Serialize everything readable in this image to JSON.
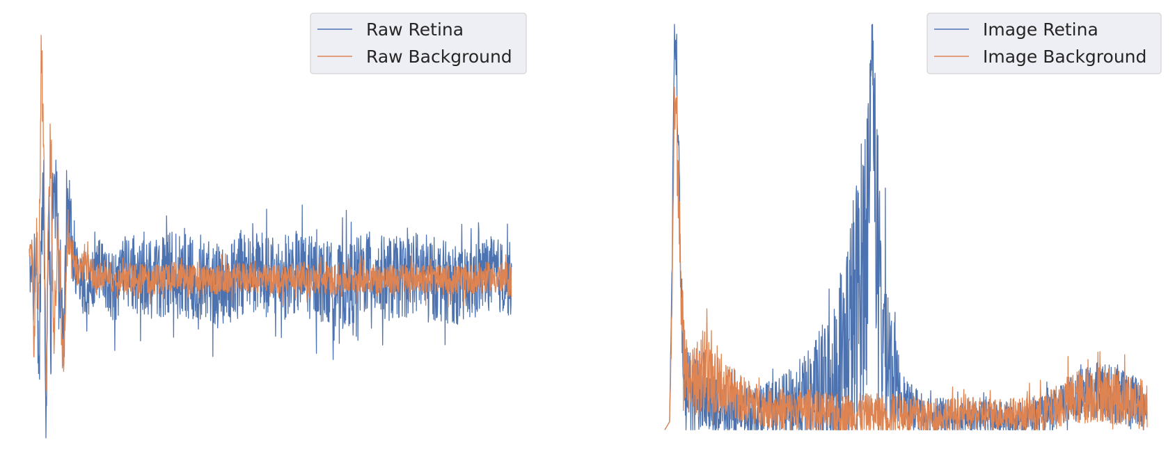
{
  "chart_data": [
    {
      "type": "line",
      "panel": "left",
      "title": "",
      "xlabel": "",
      "ylabel": "",
      "axes_visible": false,
      "grid": false,
      "legend": {
        "placement": "top-right"
      },
      "series": [
        {
          "name": "Raw Retina",
          "color": "#4c72b0",
          "anchors_x": [
            0,
            0.5,
            1.0,
            1.5,
            2.0,
            2.5,
            3.0,
            3.5,
            4.0,
            4.5,
            5.0,
            6.0,
            7.0,
            8.0,
            10.0,
            12.0,
            14.0,
            16.0,
            18.0,
            20.0,
            25.0,
            30.0,
            35.0,
            40.0,
            45.0,
            50.0,
            55.0,
            60.0,
            65.0,
            70.0,
            75.0,
            80.0,
            85.0,
            90.0,
            95.0,
            100.0
          ],
          "anchors_y": [
            0.05,
            0.1,
            -0.1,
            0.2,
            -0.6,
            0.35,
            0.5,
            -1.0,
            0.55,
            -0.4,
            0.9,
            0.3,
            -0.5,
            0.45,
            0.05,
            -0.15,
            0.1,
            0.0,
            -0.05,
            0.05,
            0.0,
            0.05,
            0.0,
            -0.05,
            0.05,
            0.0,
            0.05,
            0.0,
            -0.05,
            0.05,
            0.0,
            0.05,
            0.0,
            -0.05,
            0.05,
            0.0
          ],
          "noise_amplitude": [
            0.15,
            0.2,
            0.25,
            0.25,
            0.3,
            0.3,
            0.3,
            0.3,
            0.3,
            0.3,
            0.3,
            0.3,
            0.3,
            0.3,
            0.2,
            0.2,
            0.2,
            0.22,
            0.24,
            0.25,
            0.26,
            0.28,
            0.28,
            0.28,
            0.28,
            0.28,
            0.28,
            0.28,
            0.28,
            0.28,
            0.28,
            0.28,
            0.28,
            0.25,
            0.25,
            0.25
          ],
          "ylim_hint": [
            -1.0,
            1.0
          ]
        },
        {
          "name": "Raw Background",
          "color": "#dd8452",
          "anchors_x": [
            0,
            0.5,
            1.0,
            1.5,
            2.0,
            2.5,
            3.0,
            3.5,
            4.0,
            4.5,
            5.0,
            6.0,
            7.0,
            8.0,
            10.0,
            12.0,
            14.0,
            16.0,
            18.0,
            20.0,
            25.0,
            30.0,
            35.0,
            40.0,
            45.0,
            50.0,
            55.0,
            60.0,
            65.0,
            70.0,
            75.0,
            80.0,
            85.0,
            90.0,
            95.0,
            100.0
          ],
          "anchors_y": [
            0.15,
            0.25,
            -0.5,
            0.3,
            -0.2,
            1.6,
            0.8,
            -0.7,
            0.4,
            0.85,
            -0.4,
            0.3,
            -0.6,
            0.3,
            0.05,
            0.1,
            0.0,
            0.05,
            0.0,
            0.02,
            0.0,
            0.02,
            0.0,
            0.0,
            0.02,
            0.0,
            0.02,
            0.0,
            0.0,
            0.02,
            0.0,
            0.02,
            0.0,
            0.0,
            0.02,
            0.0
          ],
          "noise_amplitude": [
            0.1,
            0.15,
            0.2,
            0.2,
            0.2,
            0.2,
            0.2,
            0.2,
            0.2,
            0.2,
            0.2,
            0.15,
            0.15,
            0.12,
            0.1,
            0.1,
            0.1,
            0.1,
            0.1,
            0.1,
            0.1,
            0.1,
            0.1,
            0.1,
            0.1,
            0.1,
            0.1,
            0.1,
            0.1,
            0.1,
            0.1,
            0.1,
            0.1,
            0.1,
            0.1,
            0.12
          ],
          "ylim_hint": [
            -1.0,
            1.7
          ]
        }
      ],
      "xlim": [
        0,
        100
      ],
      "ylim": [
        -1.05,
        1.7
      ]
    },
    {
      "type": "line",
      "panel": "right",
      "title": "",
      "xlabel": "",
      "ylabel": "",
      "axes_visible": false,
      "grid": false,
      "legend": {
        "placement": "top-right"
      },
      "series": [
        {
          "name": "Image Retina",
          "color": "#4c72b0",
          "anchors_x": [
            0,
            1.0,
            1.5,
            2.0,
            2.5,
            3.0,
            3.5,
            4.0,
            4.5,
            5.0,
            6.0,
            8.0,
            10.0,
            15.0,
            20.0,
            25.0,
            30.0,
            35.0,
            40.0,
            42.0,
            43.0,
            44.0,
            45.0,
            48.0,
            50.0,
            55.0,
            60.0,
            65.0,
            70.0,
            75.0,
            80.0,
            85.0,
            90.0,
            95.0,
            100.0
          ],
          "anchors_y": [
            0.0,
            0.02,
            0.4,
            1.0,
            0.85,
            0.6,
            0.3,
            0.15,
            0.12,
            0.1,
            0.08,
            0.08,
            0.06,
            0.05,
            0.05,
            0.06,
            0.08,
            0.12,
            0.3,
            0.5,
            0.98,
            0.45,
            0.25,
            0.12,
            0.06,
            0.04,
            0.03,
            0.03,
            0.03,
            0.03,
            0.04,
            0.08,
            0.1,
            0.08,
            0.06
          ],
          "noise_amplitude": [
            0.0,
            0.0,
            0.05,
            0.05,
            0.1,
            0.1,
            0.1,
            0.1,
            0.1,
            0.1,
            0.1,
            0.08,
            0.07,
            0.06,
            0.06,
            0.08,
            0.12,
            0.2,
            0.35,
            0.35,
            0.1,
            0.35,
            0.25,
            0.1,
            0.06,
            0.05,
            0.04,
            0.04,
            0.04,
            0.04,
            0.05,
            0.06,
            0.07,
            0.07,
            0.06
          ],
          "ylim_hint": [
            0.0,
            1.0
          ]
        },
        {
          "name": "Image Background",
          "color": "#dd8452",
          "anchors_x": [
            0,
            1.0,
            1.5,
            2.0,
            2.5,
            3.0,
            3.5,
            4.0,
            4.5,
            5.0,
            6.0,
            8.0,
            10.0,
            12.0,
            15.0,
            20.0,
            25.0,
            30.0,
            35.0,
            40.0,
            45.0,
            50.0,
            55.0,
            60.0,
            65.0,
            70.0,
            75.0,
            80.0,
            85.0,
            90.0,
            95.0,
            100.0
          ],
          "anchors_y": [
            0.0,
            0.02,
            0.3,
            0.85,
            0.75,
            0.5,
            0.3,
            0.2,
            0.15,
            0.12,
            0.1,
            0.15,
            0.12,
            0.1,
            0.08,
            0.06,
            0.05,
            0.05,
            0.04,
            0.04,
            0.04,
            0.04,
            0.03,
            0.04,
            0.04,
            0.04,
            0.04,
            0.05,
            0.08,
            0.09,
            0.08,
            0.06
          ],
          "noise_amplitude": [
            0.0,
            0.0,
            0.05,
            0.05,
            0.1,
            0.1,
            0.1,
            0.1,
            0.1,
            0.1,
            0.1,
            0.1,
            0.08,
            0.07,
            0.06,
            0.05,
            0.05,
            0.05,
            0.05,
            0.05,
            0.05,
            0.05,
            0.04,
            0.04,
            0.04,
            0.04,
            0.04,
            0.05,
            0.07,
            0.07,
            0.07,
            0.06
          ],
          "ylim_hint": [
            0.0,
            0.85
          ]
        }
      ],
      "xlim": [
        0,
        100
      ],
      "ylim": [
        -0.02,
        1.0
      ]
    }
  ]
}
